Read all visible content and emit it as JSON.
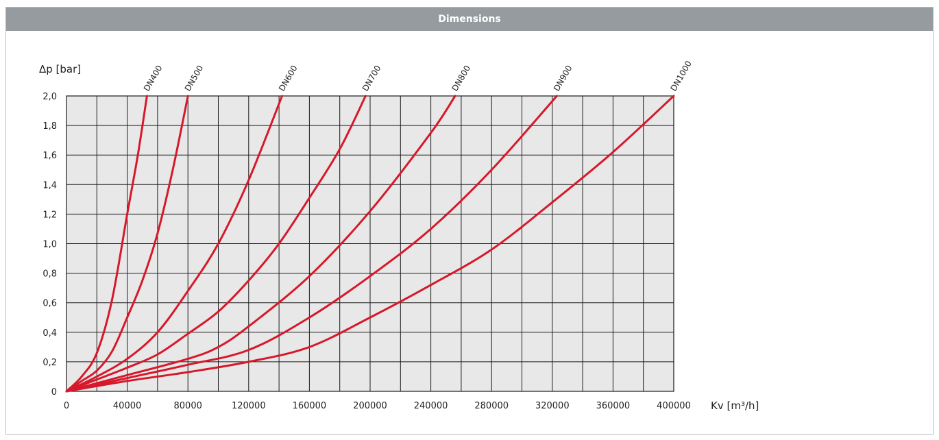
{
  "header": {
    "title": "Dimensions"
  },
  "chart_data": {
    "type": "line",
    "title": "",
    "xlabel": "Kv [m³/h]",
    "ylabel": "Δp [bar]",
    "xlim": [
      0,
      400000
    ],
    "ylim": [
      0,
      2.0
    ],
    "x_ticks": [
      0,
      40000,
      80000,
      120000,
      160000,
      200000,
      240000,
      280000,
      320000,
      360000,
      400000
    ],
    "x_tick_labels": [
      "0",
      "40000",
      "80000",
      "120000",
      "160000",
      "200000",
      "240000",
      "280000",
      "320000",
      "360000",
      "400000"
    ],
    "y_ticks": [
      0,
      0.2,
      0.4,
      0.6,
      0.8,
      1.0,
      1.2,
      1.4,
      1.6,
      1.8,
      2.0
    ],
    "y_tick_labels": [
      "0",
      "0,2",
      "0,4",
      "0,6",
      "0,8",
      "1,0",
      "1,2",
      "1,4",
      "1,6",
      "1,8",
      "2,0"
    ],
    "grid": true,
    "plot_background": "#e8e8e8",
    "line_color": "#d7182a",
    "series": [
      {
        "name": "DN400",
        "points": [
          [
            0,
            0
          ],
          [
            10000,
            0.1
          ],
          [
            20000,
            0.26
          ],
          [
            30000,
            0.62
          ],
          [
            40000,
            1.2
          ],
          [
            47000,
            1.6
          ],
          [
            53000,
            2.0
          ]
        ]
      },
      {
        "name": "DN500",
        "points": [
          [
            0,
            0
          ],
          [
            10000,
            0.07
          ],
          [
            20000,
            0.14
          ],
          [
            30000,
            0.27
          ],
          [
            40000,
            0.5
          ],
          [
            50000,
            0.75
          ],
          [
            60000,
            1.07
          ],
          [
            70000,
            1.5
          ],
          [
            80000,
            2.0
          ]
        ]
      },
      {
        "name": "DN600",
        "points": [
          [
            0,
            0
          ],
          [
            20000,
            0.1
          ],
          [
            40000,
            0.22
          ],
          [
            60000,
            0.4
          ],
          [
            80000,
            0.68
          ],
          [
            100000,
            1.0
          ],
          [
            120000,
            1.43
          ],
          [
            142000,
            2.0
          ]
        ]
      },
      {
        "name": "DN700",
        "points": [
          [
            0,
            0
          ],
          [
            20000,
            0.08
          ],
          [
            40000,
            0.16
          ],
          [
            60000,
            0.25
          ],
          [
            80000,
            0.39
          ],
          [
            100000,
            0.54
          ],
          [
            120000,
            0.75
          ],
          [
            140000,
            1.0
          ],
          [
            160000,
            1.31
          ],
          [
            180000,
            1.64
          ],
          [
            197000,
            2.0
          ]
        ]
      },
      {
        "name": "DN800",
        "points": [
          [
            0,
            0
          ],
          [
            40000,
            0.11
          ],
          [
            80000,
            0.22
          ],
          [
            100000,
            0.3
          ],
          [
            120000,
            0.44
          ],
          [
            160000,
            0.78
          ],
          [
            200000,
            1.22
          ],
          [
            240000,
            1.75
          ],
          [
            256000,
            2.0
          ]
        ]
      },
      {
        "name": "DN900",
        "points": [
          [
            0,
            0
          ],
          [
            40000,
            0.09
          ],
          [
            80000,
            0.18
          ],
          [
            120000,
            0.28
          ],
          [
            160000,
            0.5
          ],
          [
            200000,
            0.78
          ],
          [
            240000,
            1.1
          ],
          [
            280000,
            1.5
          ],
          [
            323000,
            2.0
          ]
        ]
      },
      {
        "name": "DN1000",
        "points": [
          [
            0,
            0
          ],
          [
            40000,
            0.07
          ],
          [
            80000,
            0.13
          ],
          [
            120000,
            0.2
          ],
          [
            160000,
            0.3
          ],
          [
            200000,
            0.5
          ],
          [
            240000,
            0.72
          ],
          [
            280000,
            0.96
          ],
          [
            320000,
            1.28
          ],
          [
            360000,
            1.62
          ],
          [
            400000,
            2.0
          ]
        ]
      }
    ]
  }
}
